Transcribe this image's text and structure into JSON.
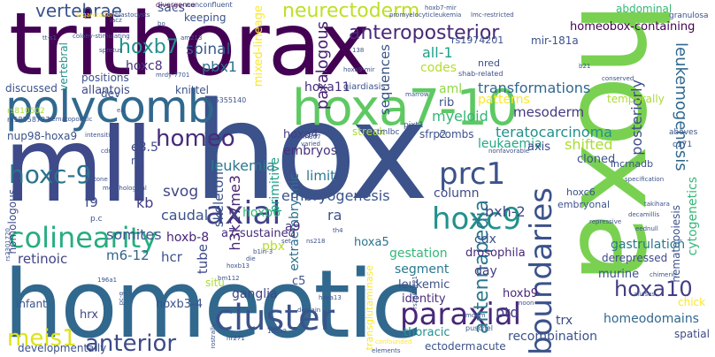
{
  "title": "word cloud",
  "palette": {
    "dark_purple": "#440154",
    "purple": "#472c7a",
    "indigo": "#3b528b",
    "blue": "#31688e",
    "teal": "#21918c",
    "green_teal": "#27ad81",
    "green": "#5ec962",
    "lime": "#aadc32",
    "yellow": "#fde725"
  },
  "words": [
    {
      "text": "trithorax",
      "color": "#440154"
    },
    {
      "text": "hoxa",
      "color": "#7ad151"
    },
    {
      "text": "hox",
      "color": "#3b528b"
    },
    {
      "text": "homeotic",
      "color": "#31688e"
    },
    {
      "text": "mll",
      "color": "#3e4a89"
    },
    {
      "text": "polycomb",
      "color": "#31688e"
    },
    {
      "text": "hoxa7-10",
      "color": "#5ec962"
    },
    {
      "text": "boundaries",
      "color": "#3b528b"
    },
    {
      "text": "colinearity",
      "color": "#27ad81"
    },
    {
      "text": "cluster",
      "color": "#3b528b"
    },
    {
      "text": "axial",
      "color": "#414487"
    },
    {
      "text": "paraxial",
      "color": "#482878"
    },
    {
      "text": "hoxc9",
      "color": "#21918c"
    },
    {
      "text": "prc1",
      "color": "#3b528b"
    },
    {
      "text": "anterior",
      "color": "#3e4a89"
    },
    {
      "text": "neurectoderm",
      "color": "#bddf26"
    },
    {
      "text": "anteroposterior",
      "color": "#482878"
    },
    {
      "text": "vertebrae",
      "color": "#3b528b"
    },
    {
      "text": "hoxc-9",
      "color": "#2c728e"
    },
    {
      "text": "hoxb7",
      "color": "#21918c"
    },
    {
      "text": "meis1",
      "color": "#dde318"
    },
    {
      "text": "antennapedia",
      "color": "#2a788e"
    },
    {
      "text": "hoxa10",
      "color": "#433e85"
    },
    {
      "text": "leukemogenesis",
      "color": "#31688e"
    },
    {
      "text": "homeo",
      "color": "#472c7a"
    },
    {
      "text": "hoxc8",
      "color": "#46327e"
    },
    {
      "text": "pbx1",
      "color": "#2d708e"
    },
    {
      "text": "spinal",
      "color": "#365c8d"
    },
    {
      "text": "paralogous",
      "color": "#482173"
    },
    {
      "text": "sequences",
      "color": "#3b528b"
    },
    {
      "text": "all-1",
      "color": "#1fa088"
    },
    {
      "text": "codes",
      "color": "#b5de2b"
    },
    {
      "text": "aml",
      "color": "#8fd744"
    },
    {
      "text": "patterns",
      "color": "#fde725"
    },
    {
      "text": "transformations",
      "color": "#31688e"
    },
    {
      "text": "posteriorly",
      "color": "#3e4a89"
    },
    {
      "text": "mesoderm",
      "color": "#453781"
    },
    {
      "text": "myeloid",
      "color": "#35b779"
    },
    {
      "text": "teratocarcinoma",
      "color": "#21918c"
    },
    {
      "text": "leukaemia",
      "color": "#22a884"
    },
    {
      "text": "leukemia",
      "color": "#2a788e"
    },
    {
      "text": "hoxa11",
      "color": "#472d7b"
    },
    {
      "text": "hoxa4",
      "color": "#433e85"
    },
    {
      "text": "homeobox-containing",
      "color": "#440154"
    },
    {
      "text": "svog",
      "color": "#404688"
    },
    {
      "text": "skeleton",
      "color": "#3b528b"
    },
    {
      "text": "h3k27me3",
      "color": "#482677"
    },
    {
      "text": "caudal",
      "color": "#3b528b"
    },
    {
      "text": "kb",
      "color": "#433e85"
    },
    {
      "text": "f9",
      "color": "#3e4a89"
    },
    {
      "text": "somites",
      "color": "#3b528b"
    },
    {
      "text": "hoxb-8",
      "color": "#482475"
    },
    {
      "text": "hoxb6",
      "color": "#35b779"
    },
    {
      "text": "embryos",
      "color": "#46327e"
    },
    {
      "text": "limit",
      "color": "#2a788e"
    },
    {
      "text": "primitive",
      "color": "#1f9e89"
    },
    {
      "text": "extraembryonic",
      "color": "#2c728e"
    },
    {
      "text": "shifted",
      "color": "#aadc32"
    },
    {
      "text": "cloned",
      "color": "#3b528b"
    },
    {
      "text": "embryogenesis",
      "color": "#3b528b"
    },
    {
      "text": "column",
      "color": "#3e4a89"
    },
    {
      "text": "bxh-2",
      "color": "#404688"
    },
    {
      "text": "cytogenetics",
      "color": "#35b779"
    },
    {
      "text": "hematopoiesis",
      "color": "#3b528b"
    },
    {
      "text": "a7-sustained",
      "color": "#472c7a"
    },
    {
      "text": "hcr",
      "color": "#3b528b"
    },
    {
      "text": "m6-12",
      "color": "#33638d"
    },
    {
      "text": "retinoic",
      "color": "#414487"
    },
    {
      "text": "tube",
      "color": "#3e4a89"
    },
    {
      "text": "pbx",
      "color": "#b5de2b"
    },
    {
      "text": "a9",
      "color": "#46307e"
    },
    {
      "text": "ra",
      "color": "#3b528b"
    },
    {
      "text": "hoxa5",
      "color": "#2c728e"
    },
    {
      "text": "gestation",
      "color": "#35b779"
    },
    {
      "text": "segment",
      "color": "#2a788e"
    },
    {
      "text": "leukemic",
      "color": "#3b528b"
    },
    {
      "text": "identity",
      "color": "#472c7a"
    },
    {
      "text": "drosophila",
      "color": "#482878"
    },
    {
      "text": "cdx",
      "color": "#3b528b"
    },
    {
      "text": "day",
      "color": "#433e85"
    },
    {
      "text": "gastrulation",
      "color": "#2a788e"
    },
    {
      "text": "derepressed",
      "color": "#3e4a89"
    },
    {
      "text": "murine",
      "color": "#3b528b"
    },
    {
      "text": "ganglia",
      "color": "#414487"
    },
    {
      "text": "c5",
      "color": "#3b528b"
    },
    {
      "text": "hoxb9",
      "color": "#482878"
    },
    {
      "text": "ptd",
      "color": "#433e85"
    },
    {
      "text": "hoxb3-4",
      "color": "#3b528b"
    },
    {
      "text": "hrx",
      "color": "#3e4a89"
    },
    {
      "text": "thoracic",
      "color": "#21918c"
    },
    {
      "text": "trx",
      "color": "#3e4a89"
    },
    {
      "text": "homeodomains",
      "color": "#31688e"
    },
    {
      "text": "recombination",
      "color": "#3b528b"
    },
    {
      "text": "ectoderm",
      "color": "#3b528b"
    },
    {
      "text": "acute",
      "color": "#3b528b"
    },
    {
      "text": "spatial",
      "color": "#3e4a89"
    },
    {
      "text": "chick",
      "color": "#fde725"
    },
    {
      "text": "developmentally",
      "color": "#3b528b"
    },
    {
      "text": "infant",
      "color": "#3b528b"
    },
    {
      "text": "homologous",
      "color": "#3e4a89"
    },
    {
      "text": "dev",
      "color": "#3b528b"
    },
    {
      "text": "allantois",
      "color": "#3e4a89"
    },
    {
      "text": "positions",
      "color": "#3b528b"
    },
    {
      "text": "discussed",
      "color": "#3b528b"
    },
    {
      "text": "nup98-hoxa9",
      "color": "#3b528b"
    },
    {
      "text": "e8.5",
      "color": "#3e4a89"
    },
    {
      "text": "nt",
      "color": "#3b528b"
    },
    {
      "text": "sacs",
      "color": "#3b528b"
    },
    {
      "text": "keeping",
      "color": "#3b528b"
    },
    {
      "text": "vertebral",
      "color": "#21918c"
    },
    {
      "text": "mixed-lineage",
      "color": "#fde725"
    },
    {
      "text": "knittel",
      "color": "#3b528b"
    },
    {
      "text": "giardiasis",
      "color": "#3b528b"
    },
    {
      "text": "rib",
      "color": "#3b528b"
    },
    {
      "text": "sfrp2",
      "color": "#3b528b"
    },
    {
      "text": "combs",
      "color": "#3b528b"
    },
    {
      "text": "axis",
      "color": "#3e4a89"
    },
    {
      "text": "streak",
      "color": "#aadc32"
    },
    {
      "text": "tmlbc",
      "color": "#3b528b"
    },
    {
      "text": "pixt1",
      "color": "#3b528b"
    },
    {
      "text": "embryonal",
      "color": "#3b528b"
    },
    {
      "text": "hoxc6",
      "color": "#3b528b"
    },
    {
      "text": "lncrnadb",
      "color": "#3b528b"
    },
    {
      "text": "temporally",
      "color": "#aadc32"
    },
    {
      "text": "granulosa",
      "color": "#3b528b"
    },
    {
      "text": "mir-181a",
      "color": "#3b528b"
    },
    {
      "text": "rs1974201",
      "color": "#3b528b"
    },
    {
      "text": "nred",
      "color": "#3b528b"
    },
    {
      "text": "shab-related",
      "color": "#3b528b"
    },
    {
      "text": "abdominal",
      "color": "#35b779"
    },
    {
      "text": "divergence",
      "color": "#440154"
    },
    {
      "text": "nonconfluent",
      "color": "#3b528b"
    },
    {
      "text": "promyelocyticleukemia",
      "color": "#3b528b"
    },
    {
      "text": "lmc-restricted",
      "color": "#3b528b"
    },
    {
      "text": "organization",
      "color": "#fde725"
    },
    {
      "text": "blastocysts",
      "color": "#3b528b"
    },
    {
      "text": "colony-stimulating",
      "color": "#3b528b"
    },
    {
      "text": "rs810502",
      "color": "#aadc32"
    },
    {
      "text": "rs18558733",
      "color": "#3b528b"
    },
    {
      "text": "hematopoietic",
      "color": "#3b528b"
    },
    {
      "text": "rs35355140",
      "color": "#3b528b"
    },
    {
      "text": "swi/snf",
      "color": "#3b528b"
    },
    {
      "text": "situ",
      "color": "#aadc32"
    },
    {
      "text": "cdna",
      "color": "#3b528b"
    },
    {
      "text": "histone",
      "color": "#3b528b"
    },
    {
      "text": "morphological",
      "color": "#3b528b"
    },
    {
      "text": "repressive",
      "color": "#3b528b"
    },
    {
      "text": "decamillis",
      "color": "#3b528b"
    },
    {
      "text": "eednull",
      "color": "#3b528b"
    },
    {
      "text": "takihara",
      "color": "#3b528b"
    },
    {
      "text": "specification",
      "color": "#3b528b"
    },
    {
      "text": "aliases",
      "color": "#3b528b"
    },
    {
      "text": "c171",
      "color": "#3b528b"
    },
    {
      "text": "aboves",
      "color": "#3b528b"
    },
    {
      "text": "conserved",
      "color": "#3b528b"
    },
    {
      "text": "b21",
      "color": "#3b528b"
    },
    {
      "text": "rs2301720",
      "color": "#3b528b"
    },
    {
      "text": "rs2301721",
      "color": "#3b528b"
    },
    {
      "text": "chimeric",
      "color": "#3b528b"
    },
    {
      "text": "noon",
      "color": "#3b528b"
    },
    {
      "text": "mdgm",
      "color": "#3b528b"
    },
    {
      "text": "puschel",
      "color": "#3b528b"
    },
    {
      "text": "hoxa13",
      "color": "#3b528b"
    },
    {
      "text": "196a2",
      "color": "#3b528b"
    },
    {
      "text": "196a1",
      "color": "#3b528b"
    },
    {
      "text": "bm112",
      "color": "#3b528b"
    },
    {
      "text": "hoxb13",
      "color": "#3b528b"
    },
    {
      "text": "b1in-3",
      "color": "#3b528b"
    },
    {
      "text": "die",
      "color": "#3b528b"
    },
    {
      "text": "set",
      "color": "#3b528b"
    },
    {
      "text": "ns218",
      "color": "#3b528b"
    },
    {
      "text": "nm307",
      "color": "#3b528b"
    },
    {
      "text": "varied",
      "color": "#3b528b"
    },
    {
      "text": "intensities",
      "color": "#3b528b"
    },
    {
      "text": "transglutaminase",
      "color": "#fde725"
    },
    {
      "text": "mrdy-7701",
      "color": "#3b528b"
    },
    {
      "text": "am213",
      "color": "#3b528b"
    },
    {
      "text": "spretus",
      "color": "#3b528b"
    },
    {
      "text": "bo",
      "color": "#3b528b"
    },
    {
      "text": "rostrally",
      "color": "#3b528b"
    },
    {
      "text": "elements",
      "color": "#3b528b"
    },
    {
      "text": "nr271",
      "color": "#3b528b"
    },
    {
      "text": "confounded",
      "color": "#fde725"
    },
    {
      "text": "ea",
      "color": "#3b528b"
    },
    {
      "text": "marrow",
      "color": "#3b528b"
    },
    {
      "text": "tt-s1",
      "color": "#3b528b"
    },
    {
      "text": "hoxb7-mir",
      "color": "#3b528b"
    },
    {
      "text": "hoxa9-mir",
      "color": "#3b528b"
    },
    {
      "text": "138",
      "color": "#3b528b"
    },
    {
      "text": "lacz",
      "color": "#3b528b"
    },
    {
      "text": "p.c",
      "color": "#3b528b"
    },
    {
      "text": "th4",
      "color": "#3b528b"
    },
    {
      "text": "nonfavorable",
      "color": "#3b528b"
    },
    {
      "text": "pc-g",
      "color": "#3b528b"
    },
    {
      "text": "domain",
      "color": "#3b528b"
    }
  ]
}
